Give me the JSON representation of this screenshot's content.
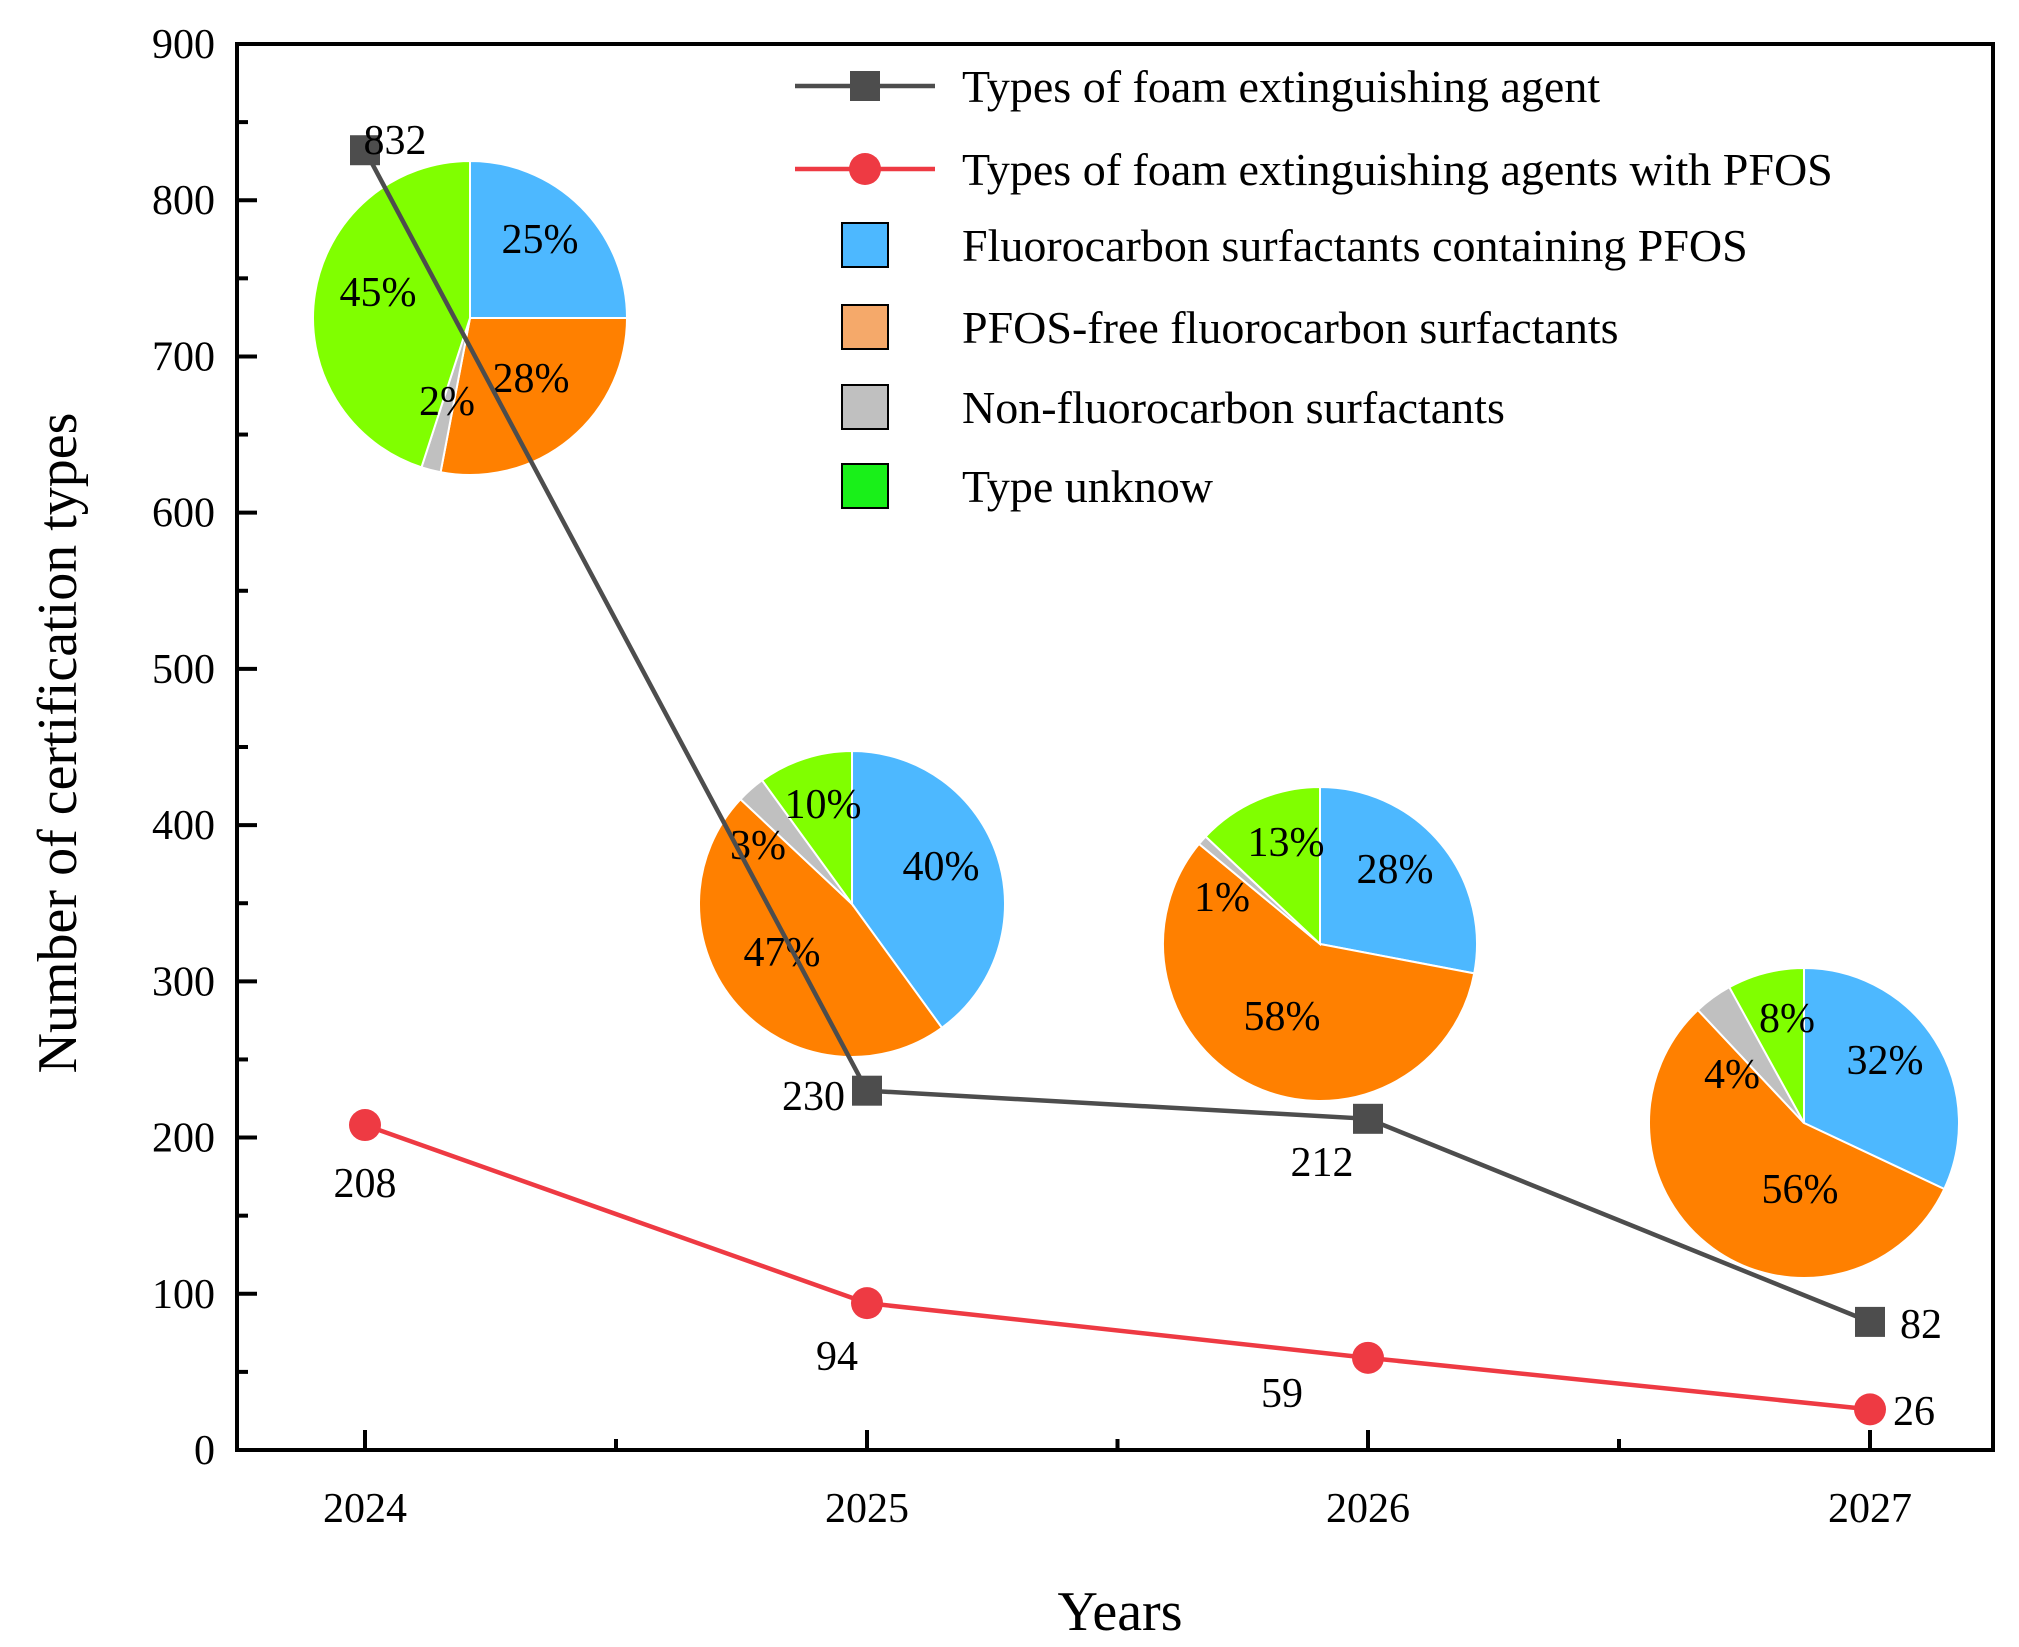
{
  "chart_data": {
    "type": "line",
    "xlabel": "Years",
    "ylabel": "Number of certification types",
    "ylim": [
      0,
      900
    ],
    "y_ticks": [
      0,
      100,
      200,
      300,
      400,
      500,
      600,
      700,
      800,
      900
    ],
    "categories": [
      "2024",
      "2025",
      "2026",
      "2027"
    ],
    "grid": false,
    "legend_position": "top-right",
    "series": [
      {
        "name": "Types  of  foam extinguishing agent",
        "marker": "square",
        "color": "#4d4d4d",
        "values": [
          832,
          230,
          212,
          82
        ],
        "labels": [
          "832",
          "230",
          "212",
          "82"
        ]
      },
      {
        "name": "Types of foam extinguishing agents with PFOS",
        "marker": "circle",
        "color": "#ee3a43",
        "values": [
          208,
          94,
          59,
          26
        ],
        "labels": [
          "208",
          "94",
          "59",
          "26"
        ]
      }
    ],
    "pie_legend": [
      {
        "name": "Fluorocarbon surfactants containing PFOS",
        "color": "#4db8ff"
      },
      {
        "name": "PFOS-free fluorocarbon surfactants",
        "color": "#f5a96a"
      },
      {
        "name": "Non-fluorocarbon surfactants",
        "color": "#c0c0c0"
      },
      {
        "name": "Type unknow",
        "color": "#19f019"
      }
    ],
    "pie_colors": [
      "#4db8ff",
      "#ff8000",
      "#c0c0c0",
      "#80ff00"
    ],
    "pies": [
      {
        "year": "2024",
        "values": [
          25,
          28,
          2,
          45
        ],
        "labels": [
          "25%",
          "28%",
          "2%",
          "45%"
        ]
      },
      {
        "year": "2025",
        "values": [
          40,
          47,
          3,
          10
        ],
        "labels": [
          "40%",
          "47%",
          "3%",
          "10%"
        ]
      },
      {
        "year": "2026",
        "values": [
          28,
          58,
          1,
          13
        ],
        "labels": [
          "28%",
          "58%",
          "1%",
          "13%"
        ]
      },
      {
        "year": "2027",
        "values": [
          32,
          56,
          4,
          8
        ],
        "labels": [
          "32%",
          "56%",
          "4%",
          "8%"
        ]
      }
    ]
  }
}
